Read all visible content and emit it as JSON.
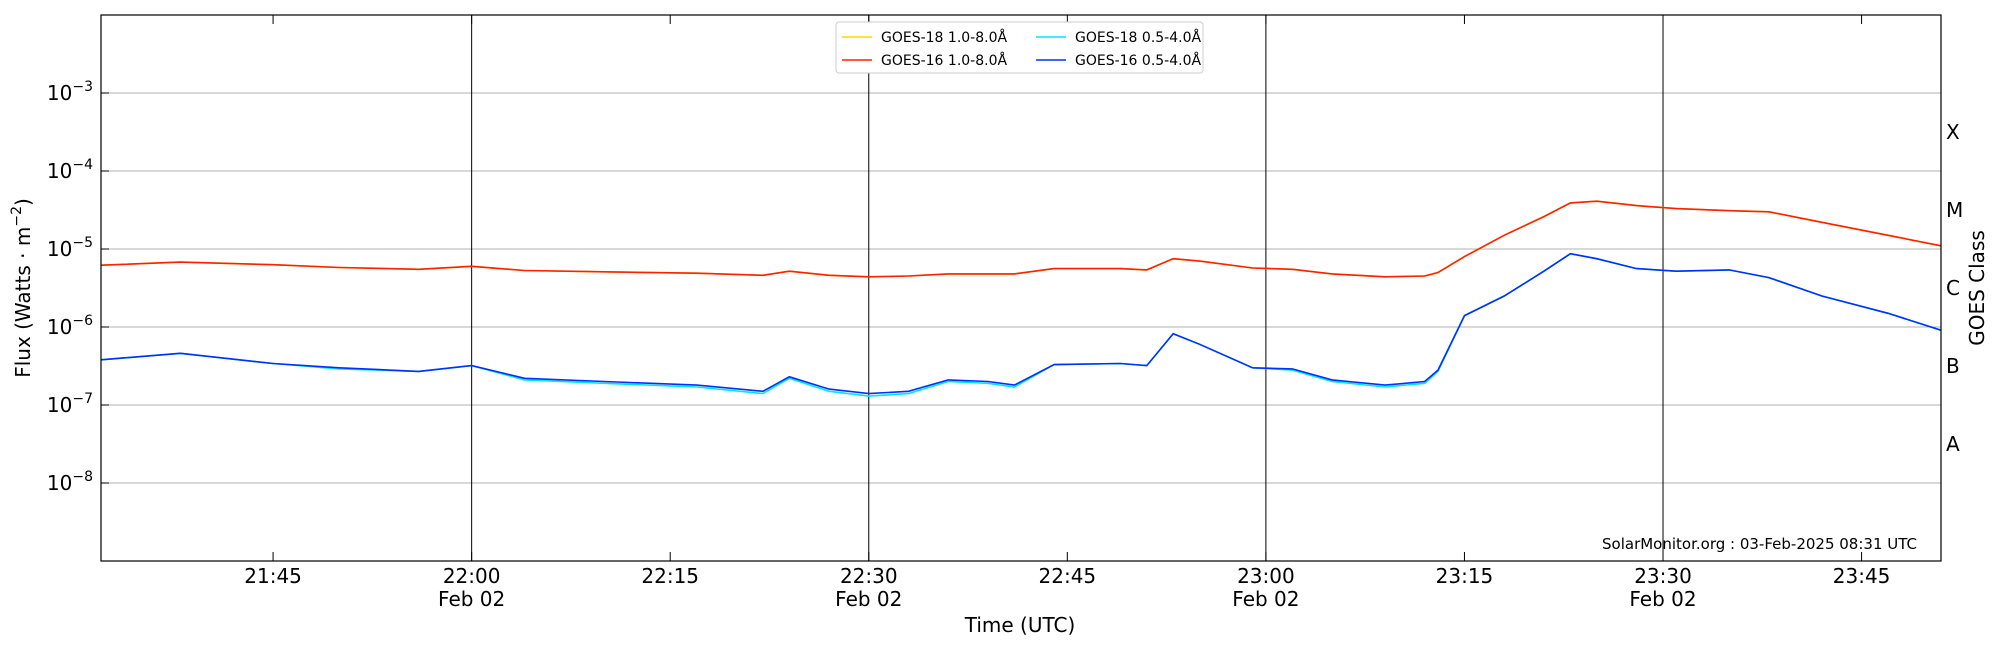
{
  "chart_data": {
    "type": "line",
    "log_y": true,
    "grid": true,
    "ylabel": [
      "Flux (Watts · m",
      "−2",
      ")"
    ],
    "xlabel": "Time (UTC)",
    "y2label": "GOES Class",
    "annotation": "SolarMonitor.org : 03-Feb-2025 08:31 UTC",
    "legend": "upper center",
    "xlim": [
      "21:32",
      "23:51"
    ],
    "xticks": [
      "21:45",
      {
        "value": "22:00",
        "label": [
          "22:00",
          "Feb 02"
        ]
      },
      "22:15",
      {
        "value": "22:30",
        "label": [
          "22:30",
          "Feb 02"
        ]
      },
      "22:45",
      {
        "value": "23:00",
        "label": [
          "23:00",
          "Feb 02"
        ]
      },
      "23:15",
      {
        "value": "23:30",
        "label": [
          "23:30",
          "Feb 02"
        ]
      },
      "23:45"
    ],
    "vlines": [
      "22:00",
      "22:30",
      "23:00",
      "23:30"
    ],
    "ylim": [
      1e-09,
      0.01
    ],
    "yticks": [
      {
        "value": 1e-08,
        "label": [
          "10",
          "−8"
        ]
      },
      {
        "value": 1e-07,
        "label": [
          "10",
          "−7"
        ]
      },
      {
        "value": 1e-06,
        "label": [
          "10",
          "−6"
        ]
      },
      {
        "value": 1e-05,
        "label": [
          "10",
          "−5"
        ]
      },
      {
        "value": 0.0001,
        "label": [
          "10",
          "−4"
        ]
      },
      {
        "value": 0.001,
        "label": [
          "10",
          "−3"
        ]
      }
    ],
    "y2lim": [
      1e-09,
      0.01
    ],
    "y2ticks": [
      {
        "value": 3.16e-08,
        "label": "A"
      },
      {
        "value": 3.16e-07,
        "label": "B"
      },
      {
        "value": 3.16e-06,
        "label": "C"
      },
      {
        "value": 3.16e-05,
        "label": "M"
      },
      {
        "value": 0.000316,
        "label": "X"
      }
    ],
    "x": [
      "21:32",
      "21:38",
      "21:45",
      "21:50",
      "21:56",
      "22:00",
      "22:04",
      "22:10",
      "22:17",
      "22:22",
      "22:24",
      "22:27",
      "22:30",
      "22:33",
      "22:36",
      "22:39",
      "22:41",
      "22:44",
      "22:49",
      "22:51",
      "22:53",
      "22:55",
      "22:59",
      "23:02",
      "23:05",
      "23:09",
      "23:12",
      "23:13",
      "23:15",
      "23:18",
      "23:21",
      "23:23",
      "23:25",
      "23:28",
      "23:31",
      "23:35",
      "23:38",
      "23:42",
      "23:47",
      "23:51"
    ],
    "series": [
      {
        "name": "GOES-18 1.0-8.0Å",
        "color": "#ffd700",
        "values": [
          6.2e-06,
          6.8e-06,
          6.3e-06,
          5.8e-06,
          5.5e-06,
          6e-06,
          5.3e-06,
          5.1e-06,
          4.9e-06,
          4.6e-06,
          5.2e-06,
          4.6e-06,
          4.4e-06,
          4.5e-06,
          4.8e-06,
          4.8e-06,
          4.8e-06,
          5.6e-06,
          5.6e-06,
          5.4e-06,
          7.5e-06,
          7e-06,
          5.7e-06,
          5.5e-06,
          4.8e-06,
          4.4e-06,
          4.5e-06,
          5e-06,
          8e-06,
          1.5e-05,
          2.6e-05,
          3.9e-05,
          4.1e-05,
          3.6e-05,
          3.3e-05,
          3.1e-05,
          3e-05,
          2.2e-05,
          1.5e-05,
          1.1e-05
        ]
      },
      {
        "name": "GOES-16 1.0-8.0Å",
        "color": "#ff2000",
        "values": [
          6.2e-06,
          6.8e-06,
          6.3e-06,
          5.8e-06,
          5.5e-06,
          6e-06,
          5.3e-06,
          5.1e-06,
          4.9e-06,
          4.6e-06,
          5.2e-06,
          4.6e-06,
          4.4e-06,
          4.5e-06,
          4.8e-06,
          4.8e-06,
          4.8e-06,
          5.6e-06,
          5.6e-06,
          5.4e-06,
          7.5e-06,
          7e-06,
          5.7e-06,
          5.5e-06,
          4.8e-06,
          4.4e-06,
          4.5e-06,
          5e-06,
          8e-06,
          1.5e-05,
          2.6e-05,
          3.9e-05,
          4.1e-05,
          3.6e-05,
          3.3e-05,
          3.1e-05,
          3e-05,
          2.2e-05,
          1.5e-05,
          1.1e-05
        ]
      },
      {
        "name": "GOES-18 0.5-4.0Å",
        "color": "#00e5ff",
        "values": [
          3.8e-07,
          4.6e-07,
          3.4e-07,
          2.9e-07,
          2.7e-07,
          3.2e-07,
          2.1e-07,
          1.9e-07,
          1.7e-07,
          1.4e-07,
          2.2e-07,
          1.5e-07,
          1.3e-07,
          1.4e-07,
          2e-07,
          1.9e-07,
          1.7e-07,
          3.3e-07,
          3.4e-07,
          3.2e-07,
          8.2e-07,
          6e-07,
          3e-07,
          2.8e-07,
          2e-07,
          1.7e-07,
          1.9e-07,
          2.7e-07,
          1.4e-06,
          2.5e-06,
          5.2e-06,
          8.7e-06,
          7.5e-06,
          5.6e-06,
          5.2e-06,
          5.4e-06,
          4.3e-06,
          2.5e-06,
          1.5e-06,
          9.1e-07
        ]
      },
      {
        "name": "GOES-16 0.5-4.0Å",
        "color": "#0030ff",
        "values": [
          3.8e-07,
          4.6e-07,
          3.4e-07,
          3e-07,
          2.7e-07,
          3.2e-07,
          2.2e-07,
          2e-07,
          1.8e-07,
          1.5e-07,
          2.3e-07,
          1.6e-07,
          1.4e-07,
          1.5e-07,
          2.1e-07,
          2e-07,
          1.8e-07,
          3.3e-07,
          3.4e-07,
          3.2e-07,
          8.2e-07,
          6e-07,
          3e-07,
          2.9e-07,
          2.1e-07,
          1.8e-07,
          2e-07,
          2.8e-07,
          1.4e-06,
          2.5e-06,
          5.2e-06,
          8.7e-06,
          7.5e-06,
          5.6e-06,
          5.2e-06,
          5.4e-06,
          4.3e-06,
          2.5e-06,
          1.5e-06,
          9.1e-07
        ]
      }
    ]
  }
}
